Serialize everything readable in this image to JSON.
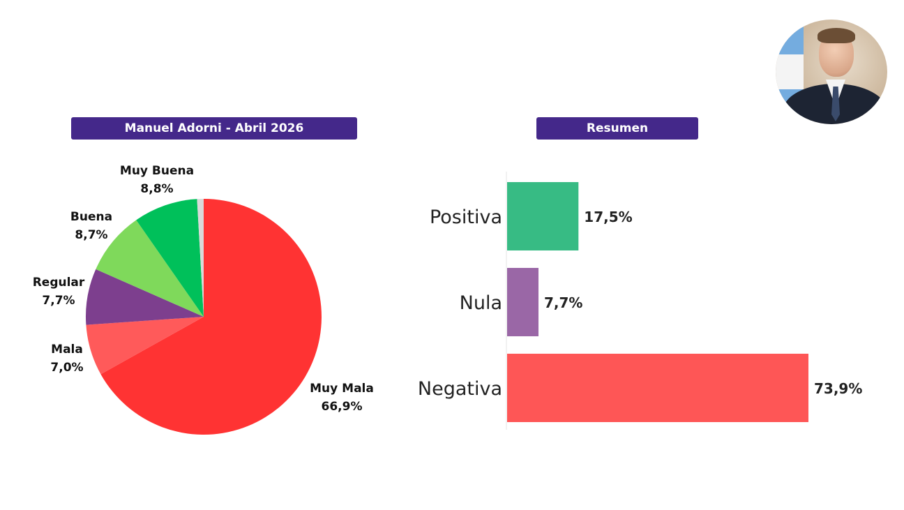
{
  "pie_title": "Manuel Adorni - Abril 2026",
  "bar_title": "Resumen",
  "avatar_icon": "person-portrait-icon",
  "chart_data": [
    {
      "type": "pie",
      "title": "Manuel Adorni - Abril 2026",
      "slices": [
        {
          "label": "Muy Mala",
          "value": 66.9,
          "display": "66,9%",
          "color": "#ff3333"
        },
        {
          "label": "Mala",
          "value": 7.0,
          "display": "7,0%",
          "color": "#ff5a5a"
        },
        {
          "label": "Regular",
          "value": 7.7,
          "display": "7,7%",
          "color": "#7d3f8e"
        },
        {
          "label": "Buena",
          "value": 8.7,
          "display": "8,7%",
          "color": "#7fd95b"
        },
        {
          "label": "Muy Buena",
          "value": 8.8,
          "display": "8,8%",
          "color": "#00c05a"
        },
        {
          "label": "",
          "value": 0.9,
          "display": "",
          "color": "#d9d9d9"
        }
      ]
    },
    {
      "type": "bar",
      "orientation": "horizontal",
      "title": "Resumen",
      "categories": [
        "Positiva",
        "Nula",
        "Negativa"
      ],
      "values": [
        17.5,
        7.7,
        73.9
      ],
      "display": [
        "17,5%",
        "7,7%",
        "73,9%"
      ],
      "colors": [
        "#37bb84",
        "#9a67a6",
        "#fe5656"
      ]
    }
  ]
}
